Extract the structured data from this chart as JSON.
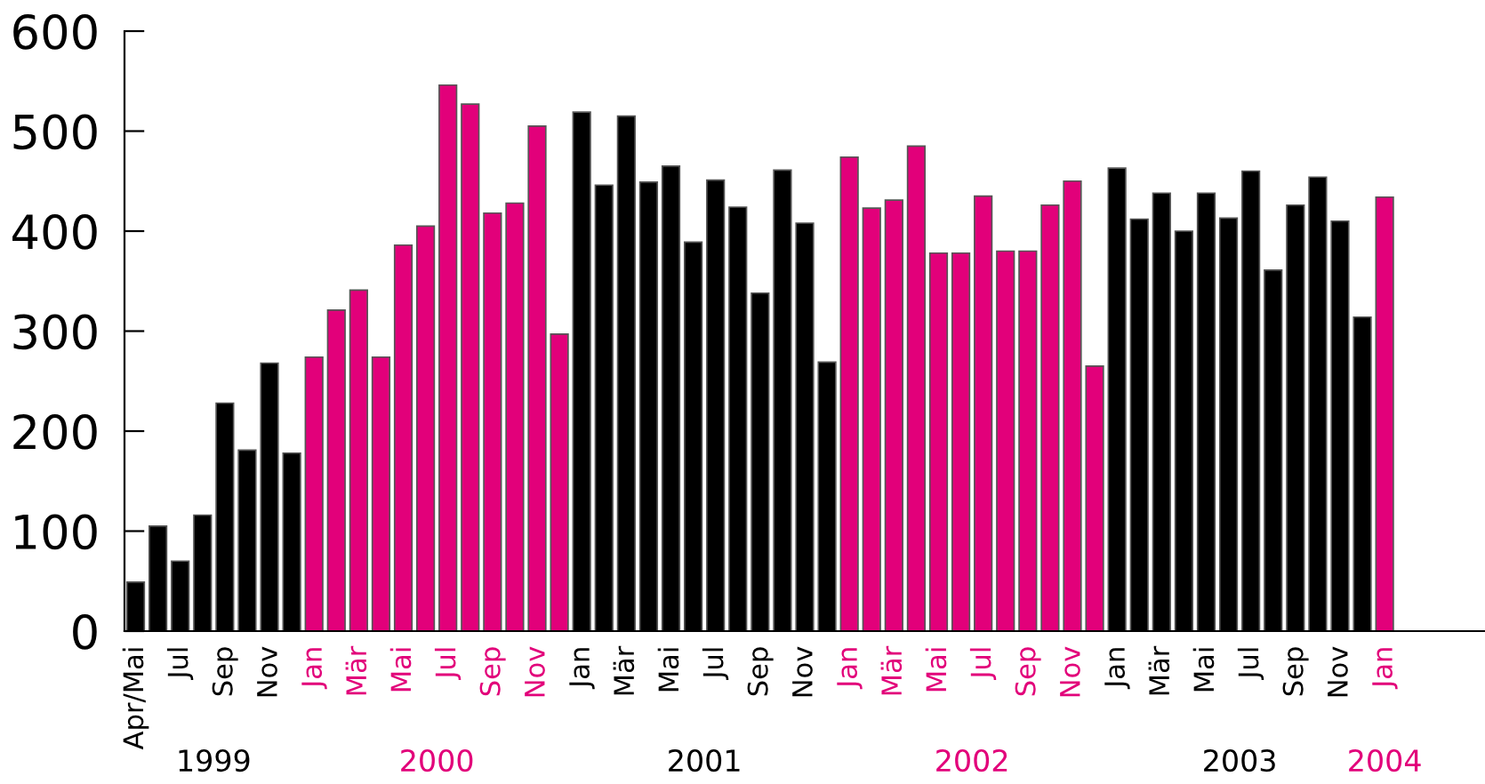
{
  "chart_data": {
    "type": "bar",
    "categories": [
      "Apr/Mai",
      null,
      "Jul",
      null,
      "Sep",
      null,
      "Nov",
      null,
      "Jan",
      null,
      "Mär",
      null,
      "Mai",
      null,
      "Jul",
      null,
      "Sep",
      null,
      "Nov",
      null,
      "Jan",
      null,
      "Mär",
      null,
      "Mai",
      null,
      "Jul",
      null,
      "Sep",
      null,
      "Nov",
      null,
      "Jan",
      null,
      "Mär",
      null,
      "Mai",
      null,
      "Jul",
      null,
      "Sep",
      null,
      "Nov",
      null,
      "Jan",
      null,
      "Mär",
      null,
      "Mai",
      null,
      "Jul",
      null,
      "Sep",
      null,
      "Nov",
      null,
      "Jan"
    ],
    "values": [
      49,
      105,
      70,
      116,
      228,
      181,
      268,
      178,
      274,
      321,
      341,
      274,
      386,
      405,
      546,
      527,
      418,
      428,
      505,
      297,
      519,
      446,
      515,
      449,
      465,
      389,
      451,
      424,
      338,
      461,
      408,
      269,
      474,
      423,
      431,
      485,
      378,
      378,
      435,
      380,
      380,
      426,
      450,
      265,
      463,
      412,
      438,
      400,
      438,
      413,
      460,
      361,
      426,
      454,
      410,
      314,
      434
    ],
    "colors": [
      "#000000",
      "#000000",
      "#000000",
      "#000000",
      "#000000",
      "#000000",
      "#000000",
      "#000000",
      "#e2007a",
      "#e2007a",
      "#e2007a",
      "#e2007a",
      "#e2007a",
      "#e2007a",
      "#e2007a",
      "#e2007a",
      "#e2007a",
      "#e2007a",
      "#e2007a",
      "#e2007a",
      "#000000",
      "#000000",
      "#000000",
      "#000000",
      "#000000",
      "#000000",
      "#000000",
      "#000000",
      "#000000",
      "#000000",
      "#000000",
      "#000000",
      "#e2007a",
      "#e2007a",
      "#e2007a",
      "#e2007a",
      "#e2007a",
      "#e2007a",
      "#e2007a",
      "#e2007a",
      "#e2007a",
      "#e2007a",
      "#e2007a",
      "#e2007a",
      "#000000",
      "#000000",
      "#000000",
      "#000000",
      "#000000",
      "#000000",
      "#000000",
      "#000000",
      "#000000",
      "#000000",
      "#000000",
      "#000000",
      "#e2007a"
    ],
    "annotations": [
      "1999",
      "2000",
      "2001",
      "2002",
      "2003",
      "2004"
    ],
    "ylim": [
      0,
      600
    ],
    "yticks": [
      0,
      100,
      200,
      300,
      400,
      500,
      600
    ],
    "grid": false
  }
}
